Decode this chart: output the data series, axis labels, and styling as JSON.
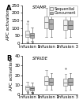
{
  "panel_A": {
    "title": "STAMP",
    "ylabel": "APC activation",
    "ylim": [
      0,
      250
    ],
    "yticks": [
      0,
      50,
      100,
      150,
      200,
      250
    ],
    "infusions": [
      "Infusion 1",
      "Infusion 2",
      "Infusion 3"
    ],
    "sequential": {
      "color": "#f0f0f0",
      "edge": "#777777",
      "boxes": [
        {
          "med": 60,
          "q1": 40,
          "q3": 85,
          "whislo": 12,
          "whishi": 130,
          "fliers": [
            5,
            145
          ]
        },
        {
          "med": 140,
          "q1": 100,
          "q3": 178,
          "whislo": 40,
          "whishi": 232,
          "fliers": []
        },
        {
          "med": 118,
          "q1": 88,
          "q3": 155,
          "whislo": 35,
          "whishi": 210,
          "fliers": []
        }
      ]
    },
    "concurrent": {
      "color": "#b0b0b0",
      "edge": "#555555",
      "boxes": [
        {
          "med": 52,
          "q1": 36,
          "q3": 70,
          "whislo": 14,
          "whishi": 102,
          "fliers": [
            5
          ]
        },
        {
          "med": 130,
          "q1": 92,
          "q3": 162,
          "whislo": 44,
          "whishi": 212,
          "fliers": []
        },
        {
          "med": 122,
          "q1": 92,
          "q3": 152,
          "whislo": 44,
          "whishi": 198,
          "fliers": []
        }
      ]
    }
  },
  "panel_B": {
    "title": "STRIDE",
    "ylabel": "APC activation",
    "ylim": [
      0,
      40
    ],
    "yticks": [
      0,
      10,
      20,
      30,
      40
    ],
    "infusions": [
      "Infusion 1",
      "Infusion 2",
      "Infusion 3"
    ],
    "sequential": {
      "color": "#f0f0f0",
      "edge": "#777777",
      "boxes": [
        {
          "med": 7,
          "q1": 5,
          "q3": 9,
          "whislo": 3,
          "whishi": 13,
          "fliers": [
            1.5,
            2
          ]
        },
        {
          "med": 14,
          "q1": 10,
          "q3": 19,
          "whislo": 5,
          "whishi": 25,
          "fliers": []
        },
        {
          "med": 12,
          "q1": 9,
          "q3": 16,
          "whislo": 4,
          "whishi": 21,
          "fliers": [
            27
          ]
        }
      ]
    },
    "concurrent": {
      "color": "#b0b0b0",
      "edge": "#555555",
      "boxes": [
        {
          "med": 6,
          "q1": 4,
          "q3": 8,
          "whislo": 2,
          "whishi": 12,
          "fliers": [
            1,
            1,
            1.5,
            1.5
          ]
        },
        {
          "med": 13,
          "q1": 10,
          "q3": 17,
          "whislo": 5,
          "whishi": 22,
          "fliers": []
        },
        {
          "med": 13,
          "q1": 10,
          "q3": 17,
          "whislo": 5,
          "whishi": 22,
          "fliers": []
        }
      ]
    }
  },
  "legend": {
    "sequential_label": "Sequential",
    "concurrent_label": "Concurrent",
    "sequential_color": "#f0f0f0",
    "concurrent_color": "#b0b0b0",
    "edge_color": "#555555"
  },
  "background_color": "#ffffff",
  "fontsize": 4.0
}
